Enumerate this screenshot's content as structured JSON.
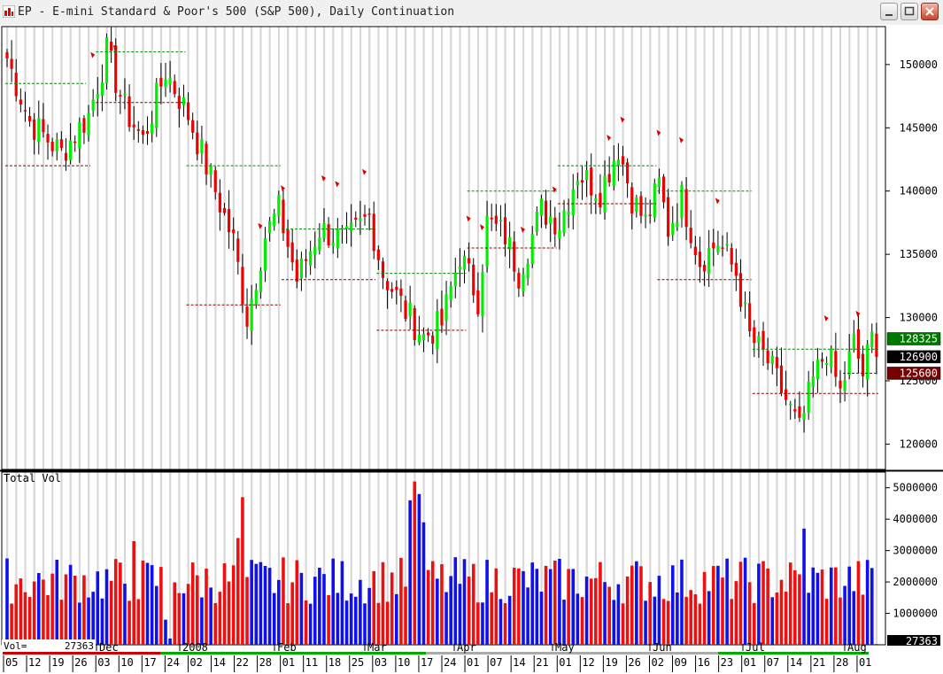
{
  "window": {
    "title": "EP - E-mini Standard & Poor's 500 (S&P 500), Daily Continuation",
    "buttons": [
      "minimize",
      "maximize",
      "close"
    ]
  },
  "colors": {
    "up": "#00ee00",
    "down": "#ee0000",
    "vol_up": "#1010ee",
    "vol_down": "#ee1010",
    "grid": "#d8d8d8",
    "up_level": "#008800",
    "down_level": "#880000",
    "signal": "#dd0000"
  },
  "price_pane": {
    "y_ticks": [
      "150000",
      "145000",
      "140000",
      "135000",
      "130000",
      "125000",
      "120000"
    ],
    "badges": [
      {
        "label": "128325",
        "value": 128325,
        "bg": "#007700",
        "fg": "#ffffff"
      },
      {
        "label": "126900",
        "value": 126900,
        "bg": "#000000",
        "fg": "#ffffff"
      },
      {
        "label": "125600",
        "value": 125600,
        "bg": "#770000",
        "fg": "#ffffff"
      }
    ]
  },
  "volume_pane": {
    "title": "Total Vol",
    "y_ticks": [
      "5000000",
      "4000000",
      "3000000",
      "2000000",
      "1000000"
    ],
    "current_label": "Vol=",
    "current_value": "27363",
    "badge": "27363"
  },
  "x_axis": {
    "day_labels": [
      "05",
      "12",
      "19",
      "26",
      "03",
      "10",
      "17",
      "24",
      "02",
      "14",
      "22",
      "28",
      "01",
      "11",
      "18",
      "25",
      "03",
      "10",
      "17",
      "24",
      "01",
      "07",
      "14",
      "21",
      "01",
      "12",
      "19",
      "26",
      "02",
      "09",
      "16",
      "23",
      "01",
      "07",
      "14",
      "21",
      "28",
      "01"
    ],
    "month_labels": [
      "Dec",
      "2008",
      "Feb",
      "Mar",
      "Apr",
      "May",
      "Jun",
      "Jul",
      "Aug"
    ]
  },
  "chart_data": {
    "type": "candlestick",
    "title": "EP - E-mini Standard & Poor's 500 (S&P 500), Daily Continuation",
    "ylim": [
      118000,
      153000
    ],
    "volume_ylim": [
      0,
      5500000
    ],
    "anchors": [
      {
        "i": 0,
        "close": 150500
      },
      {
        "i": 5,
        "close": 145500
      },
      {
        "i": 12,
        "close": 143000
      },
      {
        "i": 18,
        "close": 146000
      },
      {
        "i": 22,
        "close": 151000
      },
      {
        "i": 26,
        "close": 146500
      },
      {
        "i": 30,
        "close": 144000
      },
      {
        "i": 35,
        "close": 149500
      },
      {
        "i": 40,
        "close": 146000
      },
      {
        "i": 45,
        "close": 141000
      },
      {
        "i": 50,
        "close": 136000
      },
      {
        "i": 53,
        "close": 130000
      },
      {
        "i": 57,
        "close": 136500
      },
      {
        "i": 60,
        "close": 138500
      },
      {
        "i": 64,
        "close": 133000
      },
      {
        "i": 69,
        "close": 137000
      },
      {
        "i": 75,
        "close": 136000
      },
      {
        "i": 80,
        "close": 138000
      },
      {
        "i": 83,
        "close": 133500
      },
      {
        "i": 88,
        "close": 130500
      },
      {
        "i": 92,
        "close": 128500
      },
      {
        "i": 96,
        "close": 129500
      },
      {
        "i": 100,
        "close": 135000
      },
      {
        "i": 104,
        "close": 131500
      },
      {
        "i": 106,
        "close": 137500
      },
      {
        "i": 110,
        "close": 136500
      },
      {
        "i": 113,
        "close": 133500
      },
      {
        "i": 118,
        "close": 138500
      },
      {
        "i": 122,
        "close": 137500
      },
      {
        "i": 126,
        "close": 141500
      },
      {
        "i": 131,
        "close": 140000
      },
      {
        "i": 135,
        "close": 143500
      },
      {
        "i": 138,
        "close": 139500
      },
      {
        "i": 141,
        "close": 137500
      },
      {
        "i": 144,
        "close": 140500
      },
      {
        "i": 146,
        "close": 137000
      },
      {
        "i": 149,
        "close": 139500
      },
      {
        "i": 153,
        "close": 134500
      },
      {
        "i": 157,
        "close": 136000
      },
      {
        "i": 161,
        "close": 133500
      },
      {
        "i": 164,
        "close": 128500
      },
      {
        "i": 168,
        "close": 126500
      },
      {
        "i": 172,
        "close": 123500
      },
      {
        "i": 175,
        "close": 121000
      },
      {
        "i": 178,
        "close": 125000
      },
      {
        "i": 181,
        "close": 127500
      },
      {
        "i": 184,
        "close": 124000
      },
      {
        "i": 187,
        "close": 128000
      },
      {
        "i": 189,
        "close": 125500
      },
      {
        "i": 191,
        "close": 128300
      },
      {
        "i": 192,
        "close": 126900
      }
    ],
    "levels": [
      {
        "kind": "up",
        "value": 148500,
        "from": 0,
        "to": 17
      },
      {
        "kind": "down",
        "value": 142000,
        "from": 0,
        "to": 18
      },
      {
        "kind": "up",
        "value": 151000,
        "from": 20,
        "to": 39
      },
      {
        "kind": "down",
        "value": 147000,
        "from": 20,
        "to": 39
      },
      {
        "kind": "up",
        "value": 142000,
        "from": 40,
        "to": 60
      },
      {
        "kind": "down",
        "value": 131000,
        "from": 40,
        "to": 60
      },
      {
        "kind": "up",
        "value": 137000,
        "from": 61,
        "to": 81
      },
      {
        "kind": "down",
        "value": 133000,
        "from": 61,
        "to": 81
      },
      {
        "kind": "up",
        "value": 133500,
        "from": 82,
        "to": 101
      },
      {
        "kind": "down",
        "value": 129000,
        "from": 82,
        "to": 101
      },
      {
        "kind": "up",
        "value": 140000,
        "from": 102,
        "to": 121
      },
      {
        "kind": "down",
        "value": 135500,
        "from": 102,
        "to": 121
      },
      {
        "kind": "up",
        "value": 142000,
        "from": 122,
        "to": 143
      },
      {
        "kind": "down",
        "value": 139000,
        "from": 122,
        "to": 143
      },
      {
        "kind": "up",
        "value": 140000,
        "from": 144,
        "to": 164
      },
      {
        "kind": "down",
        "value": 133000,
        "from": 144,
        "to": 164
      },
      {
        "kind": "up",
        "value": 127500,
        "from": 165,
        "to": 192
      },
      {
        "kind": "down",
        "value": 124000,
        "from": 165,
        "to": 192
      },
      {
        "kind": "down",
        "value": 125600,
        "from": 185,
        "to": 192
      }
    ],
    "signals": [
      19,
      24,
      56,
      61,
      70,
      73,
      79,
      102,
      105,
      114,
      121,
      133,
      136,
      144,
      149,
      157,
      181,
      188
    ],
    "volume_spikes": [
      {
        "i": 52,
        "v": 4700000
      },
      {
        "i": 51,
        "v": 3400000
      },
      {
        "i": 90,
        "v": 5200000
      },
      {
        "i": 91,
        "v": 4800000
      },
      {
        "i": 89,
        "v": 4600000
      },
      {
        "i": 92,
        "v": 3900000
      },
      {
        "i": 176,
        "v": 3700000
      },
      {
        "i": 28,
        "v": 3300000
      },
      {
        "i": 35,
        "v": 800000
      },
      {
        "i": 36,
        "v": 200000
      }
    ]
  }
}
